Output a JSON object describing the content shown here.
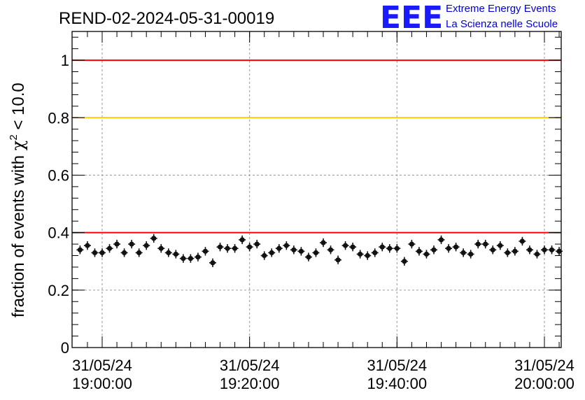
{
  "chart_data": {
    "type": "scatter",
    "title": "REND-02-2024-05-31-00019",
    "ylabel_prefix": "fraction of events with ",
    "ylabel_symbol": "χ",
    "ylabel_sup": "2",
    "ylabel_suffix": " < 10.0",
    "ylim": [
      0,
      1.1
    ],
    "yticks": [
      "0",
      "0.2",
      "0.4",
      "0.6",
      "0.8",
      "1"
    ],
    "xtick_labels": [
      {
        "date": "31/05/24",
        "time": "19:00:00"
      },
      {
        "date": "31/05/24",
        "time": "19:20:00"
      },
      {
        "date": "31/05/24",
        "time": "19:40:00"
      },
      {
        "date": "31/05/24",
        "time": "20:00:00"
      }
    ],
    "grid": true,
    "reference_lines": [
      {
        "y": 1.0,
        "color": "#ff0000"
      },
      {
        "y": 0.8,
        "color": "#ffcc00"
      },
      {
        "y": 0.4,
        "color": "#ff0000"
      }
    ],
    "marker_color": "#111111",
    "x_unit": "time (one point per minute)",
    "x": [
      "18:57",
      "18:58",
      "18:59",
      "19:00",
      "19:01",
      "19:02",
      "19:03",
      "19:04",
      "19:05",
      "19:06",
      "19:07",
      "19:08",
      "19:09",
      "19:10",
      "19:11",
      "19:12",
      "19:13",
      "19:14",
      "19:15",
      "19:16",
      "19:17",
      "19:18",
      "19:19",
      "19:20",
      "19:21",
      "19:22",
      "19:23",
      "19:24",
      "19:25",
      "19:26",
      "19:27",
      "19:28",
      "19:29",
      "19:30",
      "19:31",
      "19:32",
      "19:33",
      "19:34",
      "19:35",
      "19:36",
      "19:37",
      "19:38",
      "19:39",
      "19:40",
      "19:41",
      "19:42",
      "19:43",
      "19:44",
      "19:45",
      "19:46",
      "19:47",
      "19:48",
      "19:49",
      "19:50",
      "19:51",
      "19:52",
      "19:53",
      "19:54",
      "19:55",
      "19:56",
      "19:57",
      "19:58",
      "19:59",
      "20:00",
      "20:01",
      "20:02"
    ],
    "y": [
      0.34,
      0.355,
      0.33,
      0.33,
      0.345,
      0.36,
      0.33,
      0.36,
      0.33,
      0.355,
      0.38,
      0.345,
      0.33,
      0.325,
      0.31,
      0.31,
      0.315,
      0.335,
      0.295,
      0.35,
      0.345,
      0.345,
      0.375,
      0.35,
      0.36,
      0.32,
      0.33,
      0.345,
      0.355,
      0.34,
      0.335,
      0.315,
      0.33,
      0.365,
      0.34,
      0.305,
      0.355,
      0.35,
      0.325,
      0.32,
      0.33,
      0.35,
      0.345,
      0.345,
      0.3,
      0.36,
      0.335,
      0.325,
      0.34,
      0.375,
      0.345,
      0.35,
      0.33,
      0.325,
      0.36,
      0.36,
      0.34,
      0.355,
      0.33,
      0.335,
      0.37,
      0.34,
      0.325,
      0.34,
      0.34,
      0.335
    ],
    "yerr": 0.015
  },
  "logo": {
    "mark": "EEE",
    "line1": "Extreme Energy Events",
    "line2": "La Scienza nelle Scuole"
  }
}
